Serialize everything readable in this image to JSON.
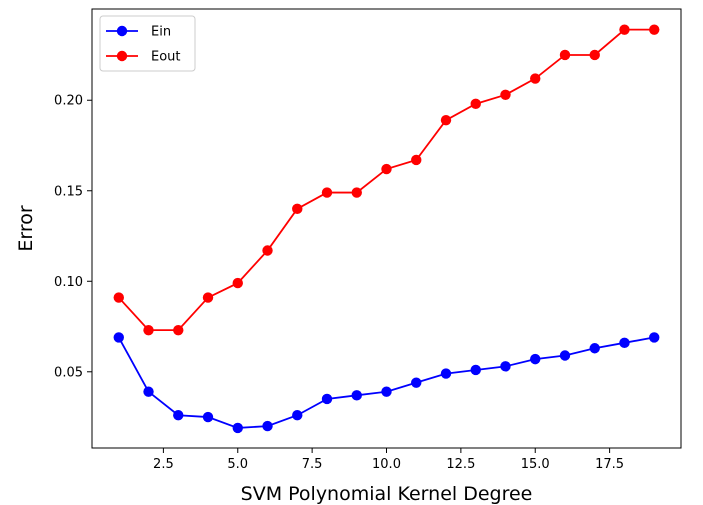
{
  "chart_data": {
    "type": "line",
    "title": "",
    "xlabel": "SVM Polynomial Kernel Degree",
    "ylabel": "Error",
    "x": [
      1,
      2,
      3,
      4,
      5,
      6,
      7,
      8,
      9,
      10,
      11,
      12,
      13,
      14,
      15,
      16,
      17,
      18,
      19
    ],
    "series": [
      {
        "name": "Ein",
        "color": "#0000ff",
        "values": [
          0.069,
          0.039,
          0.026,
          0.025,
          0.019,
          0.02,
          0.026,
          0.035,
          0.037,
          0.039,
          0.044,
          0.049,
          0.051,
          0.053,
          0.057,
          0.059,
          0.063,
          0.066,
          0.069
        ]
      },
      {
        "name": "Eout",
        "color": "#ff0000",
        "values": [
          0.091,
          0.073,
          0.073,
          0.091,
          0.099,
          0.117,
          0.14,
          0.149,
          0.149,
          0.162,
          0.167,
          0.189,
          0.198,
          0.203,
          0.212,
          0.225,
          0.225,
          0.239,
          0.239
        ]
      }
    ],
    "xlim": [
      0.1,
      19.9
    ],
    "ylim": [
      0.0079,
      0.2504
    ],
    "xticks": [
      2.5,
      5.0,
      7.5,
      10.0,
      12.5,
      15.0,
      17.5
    ],
    "xtick_labels": [
      "2.5",
      "5.0",
      "7.5",
      "10.0",
      "12.5",
      "15.0",
      "17.5"
    ],
    "yticks": [
      0.05,
      0.1,
      0.15,
      0.2
    ],
    "ytick_labels": [
      "0.05",
      "0.10",
      "0.15",
      "0.20"
    ],
    "grid": false,
    "legend_position": "top-left"
  }
}
